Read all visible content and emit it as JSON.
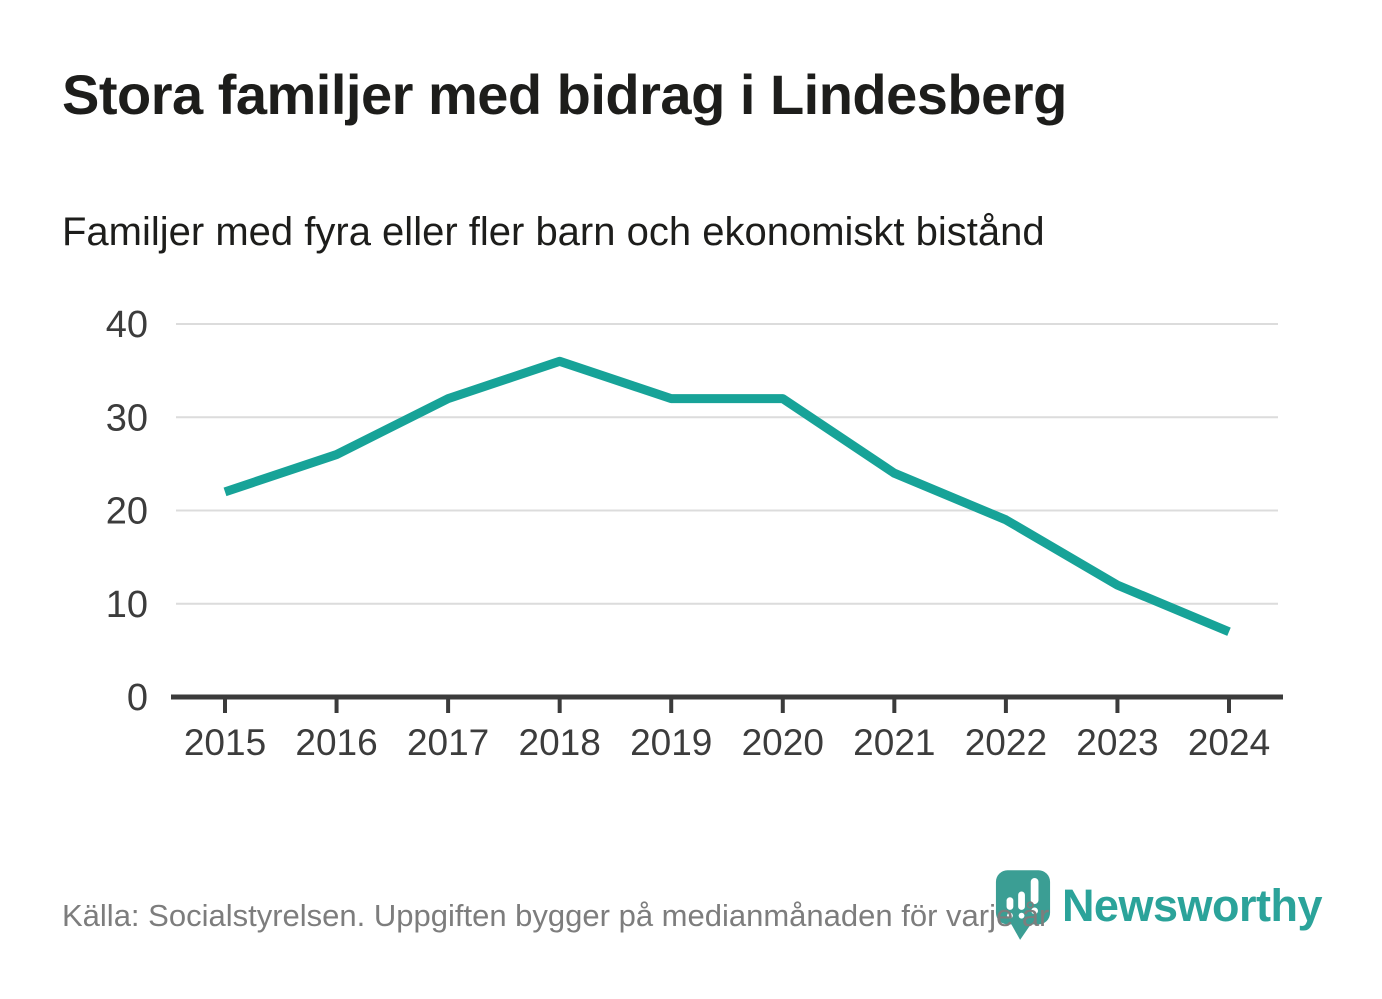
{
  "header": {
    "title": "Stora familjer med bidrag i Lindesberg",
    "subtitle": "Familjer med fyra eller fler barn och ekonomiskt bistånd"
  },
  "chart_data": {
    "type": "line",
    "categories": [
      "2015",
      "2016",
      "2017",
      "2018",
      "2019",
      "2020",
      "2021",
      "2022",
      "2023",
      "2024"
    ],
    "series": [
      {
        "name": "Familjer med fyra eller fler barn och ekonomiskt bistånd",
        "values": [
          22,
          26,
          32,
          36,
          32,
          32,
          24,
          19,
          12,
          7
        ]
      }
    ],
    "title": "Stora familjer med bidrag i Lindesberg",
    "xlabel": "",
    "ylabel": "",
    "ylim": [
      0,
      40
    ],
    "yticks": [
      0,
      10,
      20,
      30,
      40
    ],
    "grid": "horizontal",
    "legend": "none",
    "colors": {
      "line": "#17a398",
      "gridline": "#dcdcdc",
      "axis": "#3b3b3b",
      "tick_label": "#3c3c3c"
    }
  },
  "footer": {
    "source": "Källa: Socialstyrelsen. Uppgiften bygger på medianmånaden för varje år",
    "logo_text": "Newsworthy",
    "logo_color": "#2ba39a",
    "logo_icon_color": "#3b9e94"
  }
}
